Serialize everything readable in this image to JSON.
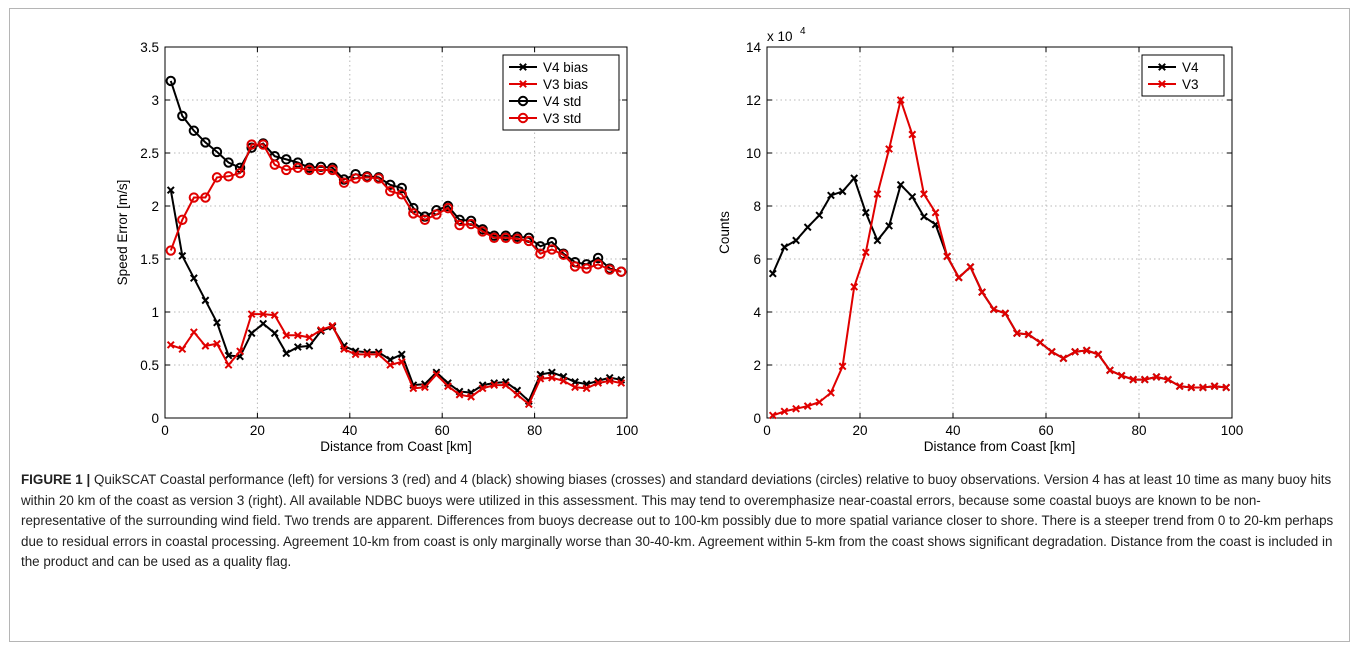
{
  "caption": {
    "label": "FIGURE 1 |",
    "text": "QuikSCAT Coastal performance (left) for versions 3 (red) and 4 (black) showing biases (crosses) and standard deviations (circles) relative to buoy observations. Version 4 has at least 10 time as many buoy hits within 20 km of the coast as version 3 (right). All available NDBC buoys were utilized in this assessment. This may tend to overemphasize near-coastal errors, because some coastal buoys are known to be non-representative of the surrounding wind field. Two trends are apparent. Differences from buoys decrease out to 100-km possibly due to more spatial variance closer to shore. There is a steeper trend from 0 to 20-km perhaps due to residual errors in coastal processing. Agreement 10-km from coast is only marginally worse than 30-40-km. Agreement within 5-km from the coast shows significant degradation. Distance from the coast is included in the product and can be used as a quality flag."
  },
  "chart_data": [
    {
      "type": "line",
      "xlabel": "Distance from Coast [km]",
      "ylabel": "Speed Error [m/s]",
      "xlim": [
        0,
        100
      ],
      "ylim": [
        0,
        3.5
      ],
      "xticks": [
        "0",
        "20",
        "40",
        "60",
        "80",
        "100"
      ],
      "yticks": [
        "0",
        "0.5",
        "1",
        "1.5",
        "2",
        "2.5",
        "3",
        "3.5"
      ],
      "grid": true,
      "legend_position": "top-right",
      "x": [
        1.25,
        3.75,
        6.25,
        8.75,
        11.25,
        13.75,
        16.25,
        18.75,
        21.25,
        23.75,
        26.25,
        28.75,
        31.25,
        33.75,
        36.25,
        38.75,
        41.25,
        43.75,
        46.25,
        48.75,
        51.25,
        53.75,
        56.25,
        58.75,
        61.25,
        63.75,
        66.25,
        68.75,
        71.25,
        73.75,
        76.25,
        78.75,
        81.25,
        83.75,
        86.25,
        88.75,
        91.25,
        93.75,
        96.25,
        98.75
      ],
      "series": [
        {
          "name": "V4 bias",
          "color": "#000000",
          "marker": "x",
          "values": [
            2.15,
            1.53,
            1.32,
            1.11,
            0.9,
            0.59,
            0.58,
            0.8,
            0.89,
            0.8,
            0.61,
            0.67,
            0.68,
            0.82,
            0.86,
            0.68,
            0.63,
            0.62,
            0.62,
            0.55,
            0.6,
            0.31,
            0.32,
            0.43,
            0.33,
            0.25,
            0.24,
            0.31,
            0.33,
            0.34,
            0.26,
            0.16,
            0.41,
            0.43,
            0.39,
            0.34,
            0.32,
            0.35,
            0.38,
            0.36
          ]
        },
        {
          "name": "V3 bias",
          "color": "#e00000",
          "marker": "x",
          "values": [
            0.69,
            0.65,
            0.81,
            0.68,
            0.7,
            0.5,
            0.63,
            0.98,
            0.98,
            0.97,
            0.78,
            0.78,
            0.76,
            0.83,
            0.87,
            0.65,
            0.6,
            0.6,
            0.6,
            0.5,
            0.53,
            0.28,
            0.29,
            0.41,
            0.3,
            0.22,
            0.2,
            0.28,
            0.31,
            0.31,
            0.22,
            0.13,
            0.37,
            0.38,
            0.35,
            0.29,
            0.28,
            0.33,
            0.35,
            0.33
          ]
        },
        {
          "name": "V4 std",
          "color": "#000000",
          "marker": "o",
          "values": [
            3.18,
            2.85,
            2.71,
            2.6,
            2.51,
            2.41,
            2.36,
            2.55,
            2.59,
            2.47,
            2.44,
            2.41,
            2.36,
            2.37,
            2.36,
            2.25,
            2.3,
            2.28,
            2.27,
            2.2,
            2.17,
            1.98,
            1.9,
            1.96,
            2.0,
            1.87,
            1.86,
            1.78,
            1.72,
            1.72,
            1.71,
            1.7,
            1.62,
            1.66,
            1.55,
            1.47,
            1.45,
            1.51,
            1.41,
            1.38
          ]
        },
        {
          "name": "V3 std",
          "color": "#e00000",
          "marker": "o",
          "values": [
            1.58,
            1.87,
            2.08,
            2.08,
            2.27,
            2.28,
            2.31,
            2.58,
            2.58,
            2.39,
            2.34,
            2.36,
            2.34,
            2.34,
            2.34,
            2.22,
            2.26,
            2.27,
            2.26,
            2.14,
            2.11,
            1.93,
            1.87,
            1.92,
            1.98,
            1.82,
            1.83,
            1.76,
            1.7,
            1.7,
            1.69,
            1.67,
            1.55,
            1.59,
            1.54,
            1.43,
            1.41,
            1.45,
            1.4,
            1.38
          ]
        }
      ]
    },
    {
      "type": "line",
      "xlabel": "Distance from Coast [km]",
      "ylabel": "Counts",
      "y_exponent_label": "x 10",
      "y_exponent": "4",
      "xlim": [
        0,
        100
      ],
      "ylim": [
        0,
        14
      ],
      "xticks": [
        "0",
        "20",
        "40",
        "60",
        "80",
        "100"
      ],
      "yticks": [
        "0",
        "2",
        "4",
        "6",
        "8",
        "10",
        "12",
        "14"
      ],
      "grid": true,
      "legend_position": "top-right",
      "x": [
        1.25,
        3.75,
        6.25,
        8.75,
        11.25,
        13.75,
        16.25,
        18.75,
        21.25,
        23.75,
        26.25,
        28.75,
        31.25,
        33.75,
        36.25,
        38.75,
        41.25,
        43.75,
        46.25,
        48.75,
        51.25,
        53.75,
        56.25,
        58.75,
        61.25,
        63.75,
        66.25,
        68.75,
        71.25,
        73.75,
        76.25,
        78.75,
        81.25,
        83.75,
        86.25,
        88.75,
        91.25,
        93.75,
        96.25,
        98.75
      ],
      "series": [
        {
          "name": "V4",
          "color": "#000000",
          "marker": "x",
          "values": [
            5.45,
            6.45,
            6.7,
            7.2,
            7.65,
            8.4,
            8.55,
            9.05,
            7.75,
            6.7,
            7.25,
            8.8,
            8.35,
            7.6,
            7.3,
            6.1,
            5.3,
            5.7,
            4.75,
            4.1,
            3.95,
            3.2,
            3.15,
            2.85,
            2.5,
            2.25,
            2.5,
            2.55,
            2.4,
            1.8,
            1.6,
            1.45,
            1.45,
            1.55,
            1.45,
            1.2,
            1.15,
            1.15,
            1.2,
            1.15
          ]
        },
        {
          "name": "V3",
          "color": "#e00000",
          "marker": "x",
          "values": [
            0.1,
            0.25,
            0.35,
            0.45,
            0.6,
            0.95,
            1.95,
            4.95,
            6.25,
            8.45,
            10.15,
            12.0,
            10.7,
            8.45,
            7.75,
            6.1,
            5.3,
            5.7,
            4.75,
            4.1,
            3.95,
            3.2,
            3.15,
            2.85,
            2.5,
            2.25,
            2.5,
            2.55,
            2.4,
            1.8,
            1.6,
            1.45,
            1.45,
            1.55,
            1.45,
            1.2,
            1.15,
            1.15,
            1.2,
            1.15
          ]
        }
      ]
    }
  ]
}
